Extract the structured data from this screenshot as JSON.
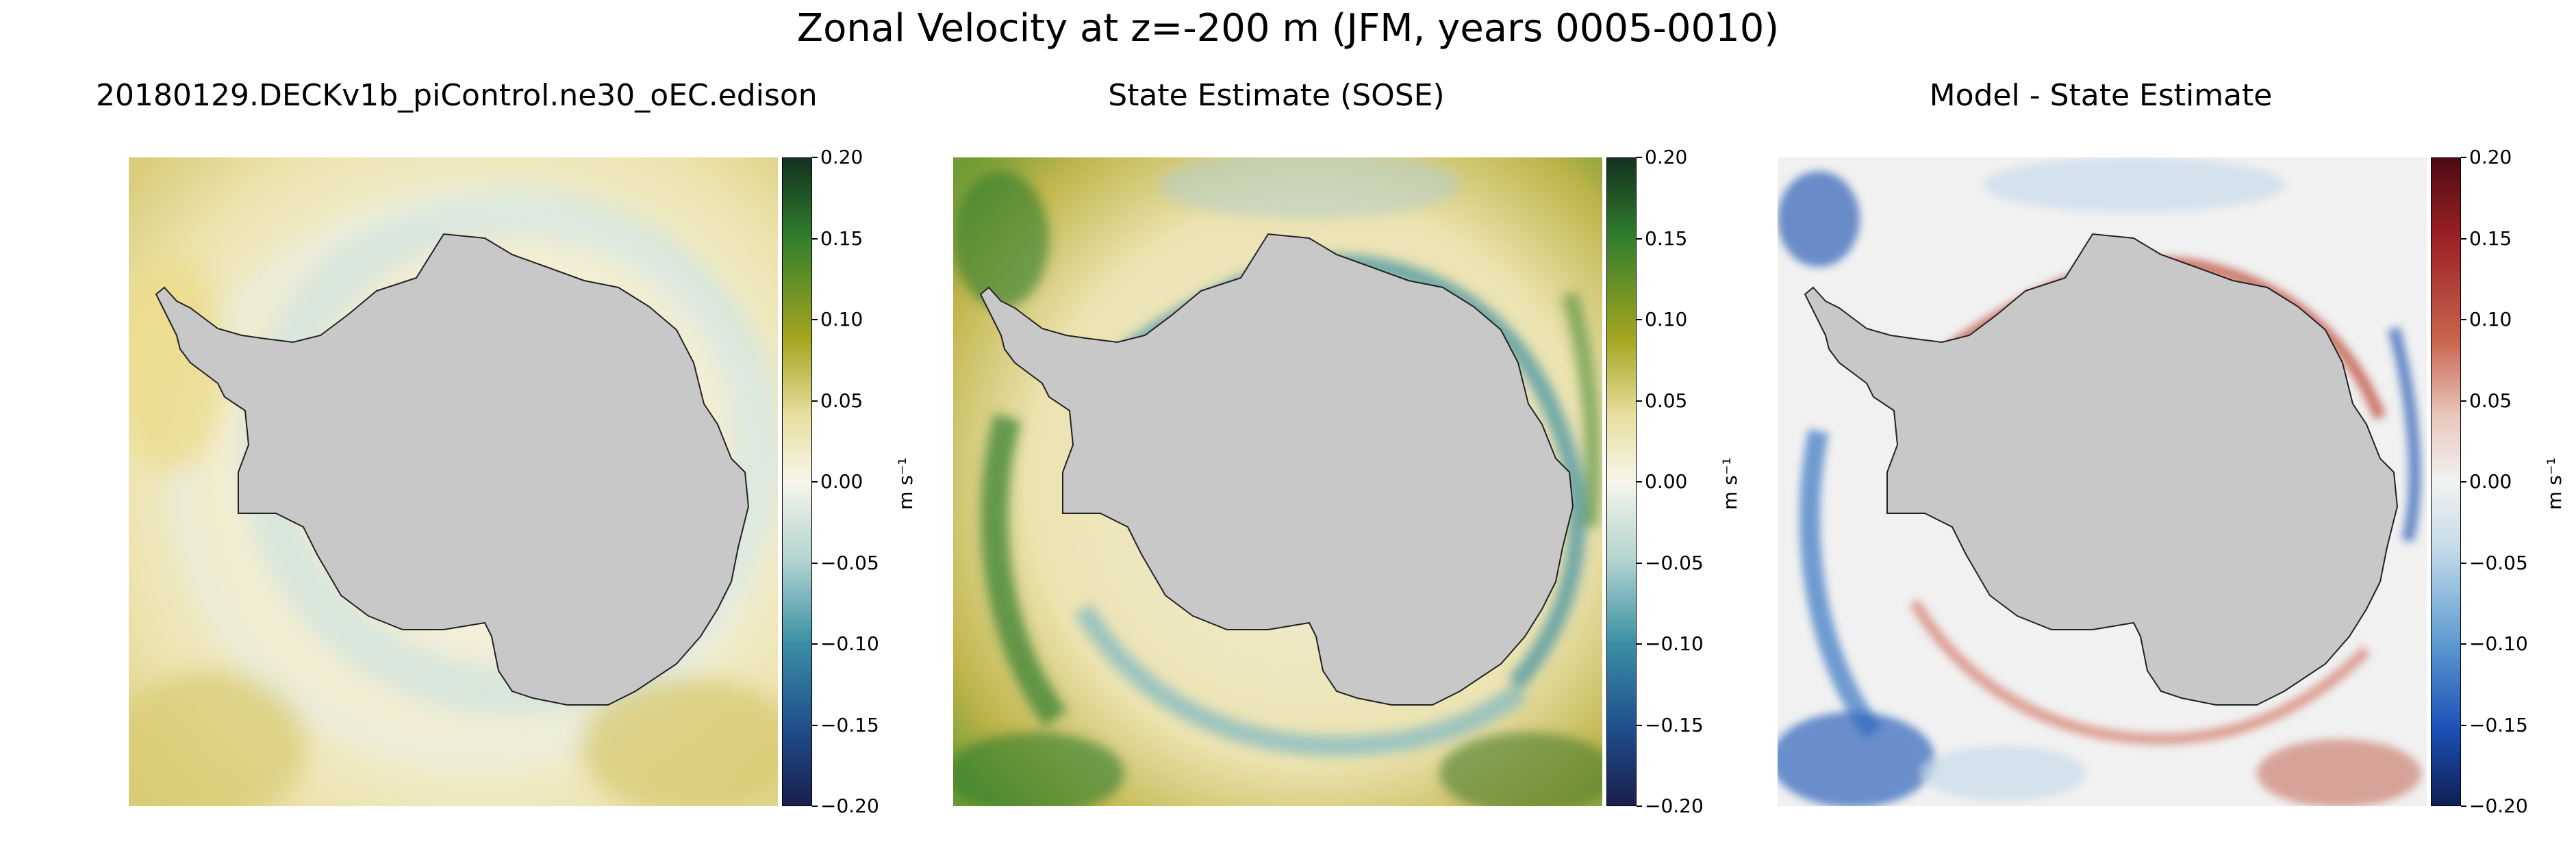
{
  "chart_data": [
    {
      "type": "heatmap",
      "suptitle": "Zonal Velocity at z=-200 m (JFM, years 0005-0010)",
      "title": "20180129.DECKv1b_piControl.ne30_oEC.edison",
      "colormap": "yellow-green-blue (gist_earth style)",
      "colors": [
        "#1a1e4d",
        "#1f4e8c",
        "#3a8fa5",
        "#b2d4cf",
        "#f7f6ea",
        "#e9e0a2",
        "#a5a620",
        "#2f7d2d",
        "#12301f"
      ],
      "land_color": "#c8c8c8",
      "clim": [
        -0.2,
        0.2
      ],
      "colorbar_ticks": [
        "0.20",
        "0.15",
        "0.10",
        "0.05",
        "0.00",
        "−0.05",
        "−0.10",
        "−0.15",
        "−0.20"
      ],
      "colorbar_label": "m s⁻¹"
    },
    {
      "type": "heatmap",
      "title": "State Estimate (SOSE)",
      "colormap": "yellow-green-blue (gist_earth style)",
      "colors": [
        "#1a1e4d",
        "#1f4e8c",
        "#3a8fa5",
        "#b2d4cf",
        "#f7f6ea",
        "#e9e0a2",
        "#a5a620",
        "#2f7d2d",
        "#12301f"
      ],
      "land_color": "#c8c8c8",
      "clim": [
        -0.2,
        0.2
      ],
      "colorbar_ticks": [
        "0.20",
        "0.15",
        "0.10",
        "0.05",
        "0.00",
        "−0.05",
        "−0.10",
        "−0.15",
        "−0.20"
      ],
      "colorbar_label": "m s⁻¹"
    },
    {
      "type": "heatmap",
      "title": "Model - State Estimate",
      "colormap": "blue-white-red diverging",
      "colors": [
        "#0f1e52",
        "#1d50b8",
        "#5c9ad0",
        "#c6dcea",
        "#f2f2f2",
        "#eac8bd",
        "#c8644e",
        "#9b1f23",
        "#4d0a14"
      ],
      "land_color": "#c8c8c8",
      "clim": [
        -0.2,
        0.2
      ],
      "colorbar_ticks": [
        "0.20",
        "0.15",
        "0.10",
        "0.05",
        "0.00",
        "−0.05",
        "−0.10",
        "−0.15",
        "−0.20"
      ],
      "colorbar_label": "m s⁻¹"
    }
  ]
}
